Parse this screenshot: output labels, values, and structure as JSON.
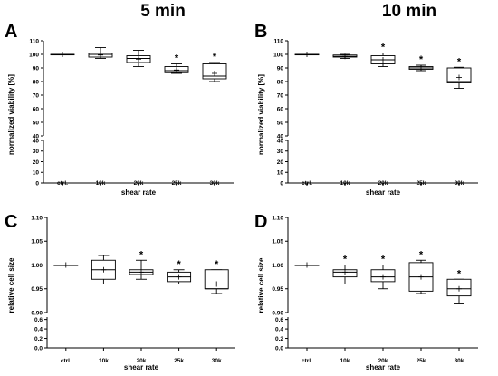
{
  "column_titles": [
    "5 min",
    "10 min"
  ],
  "chart_data": [
    {
      "panel": "A",
      "type": "box",
      "xlabel": "shear rate",
      "ylabel": "normalized viability [%]",
      "categories": [
        "ctrl.",
        "10k",
        "20k",
        "25k",
        "30k"
      ],
      "y_ticks_upper": [
        "40",
        "50",
        "60",
        "70",
        "80",
        "90",
        "100",
        "110"
      ],
      "y_ticks_lower": [
        "0",
        "10",
        "20",
        "30",
        "40"
      ],
      "y_break": [
        40,
        40
      ],
      "ylim_upper": [
        40,
        110
      ],
      "ylim_lower": [
        0,
        40
      ],
      "boxes": [
        {
          "min": 100,
          "q1": 100,
          "median": 100,
          "q3": 100,
          "max": 100,
          "mean": 100
        },
        {
          "min": 97,
          "q1": 98,
          "median": 100,
          "q3": 101,
          "max": 105,
          "mean": 99.5
        },
        {
          "min": 91,
          "q1": 94,
          "median": 97,
          "q3": 99,
          "max": 103,
          "mean": 96.5
        },
        {
          "min": 86,
          "q1": 86.5,
          "median": 88,
          "q3": 91,
          "max": 93,
          "mean": 88.5
        },
        {
          "min": 80,
          "q1": 82,
          "median": 84,
          "q3": 93,
          "max": 94,
          "mean": 86
        }
      ],
      "significance": [
        "",
        "",
        "",
        "*",
        "*"
      ]
    },
    {
      "panel": "B",
      "type": "box",
      "xlabel": "shear rate",
      "ylabel": "normalized viability [%]",
      "categories": [
        "ctrl.",
        "10k",
        "20k",
        "25k",
        "30k"
      ],
      "y_ticks_upper": [
        "40",
        "50",
        "60",
        "70",
        "80",
        "90",
        "100",
        "110"
      ],
      "y_ticks_lower": [
        "0",
        "10",
        "20",
        "30",
        "40"
      ],
      "y_break": [
        40,
        40
      ],
      "ylim_upper": [
        40,
        110
      ],
      "ylim_lower": [
        0,
        40
      ],
      "boxes": [
        {
          "min": 100,
          "q1": 100,
          "median": 100,
          "q3": 100,
          "max": 100,
          "mean": 100
        },
        {
          "min": 97,
          "q1": 98,
          "median": 98.5,
          "q3": 99.5,
          "max": 100,
          "mean": 98.5
        },
        {
          "min": 91,
          "q1": 93,
          "median": 96,
          "q3": 99,
          "max": 101,
          "mean": 96
        },
        {
          "min": 88,
          "q1": 89,
          "median": 90,
          "q3": 91,
          "max": 92,
          "mean": 90
        },
        {
          "min": 75,
          "q1": 79,
          "median": 80,
          "q3": 90,
          "max": 90.5,
          "mean": 83
        }
      ],
      "significance": [
        "",
        "",
        "*",
        "*",
        "*"
      ]
    },
    {
      "panel": "C",
      "type": "box",
      "xlabel": "shear rate",
      "ylabel": "relative cell size",
      "categories": [
        "ctrl.",
        "10k",
        "20k",
        "25k",
        "30k"
      ],
      "y_ticks_upper": [
        "0.90",
        "0.95",
        "1.00",
        "1.05",
        "1.10"
      ],
      "y_ticks_lower": [
        "0.0",
        "0.2",
        "0.4",
        "0.6"
      ],
      "ylim_upper": [
        0.9,
        1.1
      ],
      "ylim_lower": [
        0.0,
        0.65
      ],
      "boxes": [
        {
          "min": 1.0,
          "q1": 1.0,
          "median": 1.0,
          "q3": 1.0,
          "max": 1.0,
          "mean": 1.0
        },
        {
          "min": 0.96,
          "q1": 0.97,
          "median": 0.99,
          "q3": 1.01,
          "max": 1.02,
          "mean": 0.99
        },
        {
          "min": 0.97,
          "q1": 0.98,
          "median": 0.985,
          "q3": 0.99,
          "max": 1.01,
          "mean": 0.985
        },
        {
          "min": 0.96,
          "q1": 0.965,
          "median": 0.975,
          "q3": 0.985,
          "max": 0.99,
          "mean": 0.975
        },
        {
          "min": 0.94,
          "q1": 0.95,
          "median": 0.95,
          "q3": 0.99,
          "max": 0.99,
          "mean": 0.96
        }
      ],
      "significance": [
        "",
        "",
        "*",
        "*",
        "*"
      ]
    },
    {
      "panel": "D",
      "type": "box",
      "xlabel": "shear rate",
      "ylabel": "relative cell size",
      "categories": [
        "ctrl.",
        "10k",
        "20k",
        "25k",
        "30k"
      ],
      "y_ticks_upper": [
        "0.90",
        "0.95",
        "1.00",
        "1.05",
        "1.10"
      ],
      "y_ticks_lower": [
        "0.0",
        "0.2",
        "0.4",
        "0.6"
      ],
      "ylim_upper": [
        0.9,
        1.1
      ],
      "ylim_lower": [
        0.0,
        0.65
      ],
      "boxes": [
        {
          "min": 1.0,
          "q1": 1.0,
          "median": 1.0,
          "q3": 1.0,
          "max": 1.0,
          "mean": 1.0
        },
        {
          "min": 0.96,
          "q1": 0.975,
          "median": 0.985,
          "q3": 0.99,
          "max": 1.0,
          "mean": 0.985
        },
        {
          "min": 0.95,
          "q1": 0.965,
          "median": 0.975,
          "q3": 0.99,
          "max": 1.0,
          "mean": 0.975
        },
        {
          "min": 0.94,
          "q1": 0.945,
          "median": 0.975,
          "q3": 1.005,
          "max": 1.01,
          "mean": 0.975
        },
        {
          "min": 0.92,
          "q1": 0.935,
          "median": 0.95,
          "q3": 0.97,
          "max": 0.97,
          "mean": 0.95
        }
      ],
      "significance": [
        "",
        "*",
        "*",
        "*",
        "*"
      ]
    }
  ]
}
